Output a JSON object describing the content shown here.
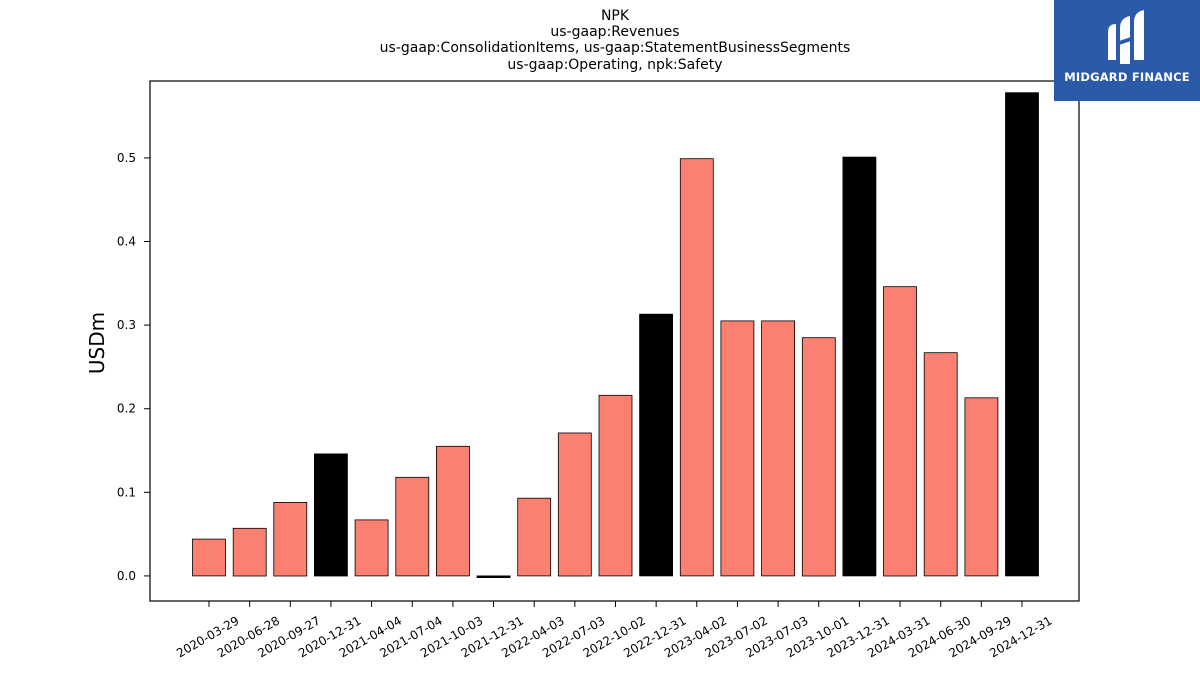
{
  "logo": {
    "text": "MIDGARD FINANCE",
    "icon": "midgard-logo-icon",
    "background": "#2b5aa8"
  },
  "chart_data": {
    "type": "bar",
    "title": [
      "NPK",
      "us-gaap:Revenues",
      "us-gaap:ConsolidationItems, us-gaap:StatementBusinessSegments",
      "us-gaap:Operating, npk:Safety"
    ],
    "xlabel": "",
    "ylabel": "USDm",
    "ylim": [
      -0.03,
      0.592
    ],
    "yticks": [
      0.0,
      0.1,
      0.2,
      0.3,
      0.4,
      0.5
    ],
    "ytick_labels": [
      "0.0",
      "0.1",
      "0.2",
      "0.3",
      "0.4",
      "0.5"
    ],
    "grid": false,
    "colors": {
      "quarter": "#fa8072",
      "year_end": "#000000"
    },
    "categories": [
      "2020-03-29",
      "2020-06-28",
      "2020-09-27",
      "2020-12-31",
      "2021-04-04",
      "2021-07-04",
      "2021-10-03",
      "2021-12-31",
      "2022-04-03",
      "2022-07-03",
      "2022-10-02",
      "2022-12-31",
      "2023-04-02",
      "2023-07-02",
      "2023-07-03",
      "2023-10-01",
      "2023-12-31",
      "2024-03-31",
      "2024-06-30",
      "2024-09-29",
      "2024-12-31"
    ],
    "values": [
      0.044,
      0.057,
      0.088,
      0.146,
      0.067,
      0.118,
      0.155,
      -0.002,
      0.093,
      0.171,
      0.216,
      0.313,
      0.499,
      0.305,
      0.305,
      0.285,
      0.501,
      0.346,
      0.267,
      0.213,
      0.578
    ],
    "bar_kind": [
      "quarter",
      "quarter",
      "quarter",
      "year_end",
      "quarter",
      "quarter",
      "quarter",
      "year_end",
      "quarter",
      "quarter",
      "quarter",
      "year_end",
      "quarter",
      "quarter",
      "quarter",
      "quarter",
      "year_end",
      "quarter",
      "quarter",
      "quarter",
      "year_end"
    ]
  }
}
